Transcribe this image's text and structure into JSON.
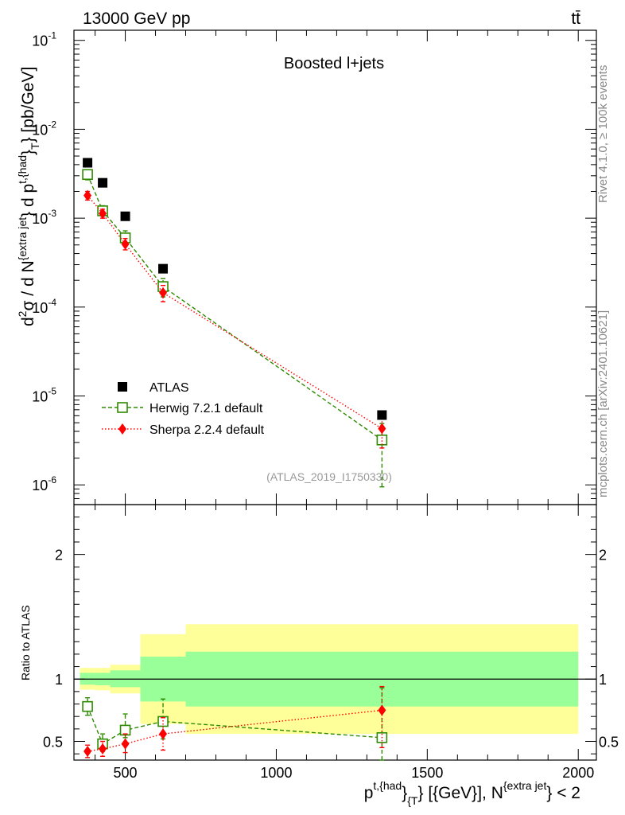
{
  "header": {
    "left": "13000 GeV pp",
    "right": "tt̄",
    "side_top": "Rivet 4.1.0, ≥ 100k events",
    "side_bottom": "mcplots.cern.ch [arXiv:2401.10621]"
  },
  "colors": {
    "atlas": "#000000",
    "herwig": "#2e8b00",
    "sherpa": "#ff0000",
    "band_inner": "#99ff99",
    "band_outer": "#ffff99",
    "watermark": "#999999"
  },
  "chart_data": [
    {
      "type": "scatter",
      "panel": "main",
      "title": "Boosted l+jets",
      "ylabel_parts": {
        "a": "d",
        "b": "2",
        "c": "σ  /  d N",
        "d": "{extra jet",
        "e": "} d p",
        "f": "t,{had",
        "g": "}",
        "h": "T",
        "i": "} [pb/GeV]"
      },
      "yscale": "log",
      "ylim": [
        6e-07,
        0.13
      ],
      "xlim": [
        330,
        2060
      ],
      "yticks": [
        {
          "base": "10",
          "exp": "-1",
          "value": 0.1
        },
        {
          "base": "10",
          "exp": "-2",
          "value": 0.01
        },
        {
          "base": "10",
          "exp": "-3",
          "value": 0.001
        },
        {
          "base": "10",
          "exp": "-4",
          "value": 0.0001
        },
        {
          "base": "10",
          "exp": "-5",
          "value": 1e-05
        },
        {
          "base": "10",
          "exp": "-6",
          "value": 1e-06
        }
      ],
      "annotation": "(ATLAS_2019_I1750330)",
      "legend_position": "lower-left",
      "series": [
        {
          "name": "ATLAS",
          "style": "square-filled",
          "x": [
            375,
            425,
            500,
            625,
            1350
          ],
          "y": [
            0.0042,
            0.0025,
            0.00105,
            0.00027,
            6.1e-06
          ]
        },
        {
          "name": "Herwig 7.2.1 default",
          "style": "square-open-dashed",
          "x": [
            375,
            425,
            500,
            625,
            1350
          ],
          "y": [
            0.0031,
            0.00121,
            0.0006,
            0.00017,
            3.2e-06
          ],
          "err_lo": [
            0.0027,
            0.00106,
            0.0005,
            0.00013,
            9.5e-07
          ],
          "err_hi": [
            0.0035,
            0.00138,
            0.00072,
            0.00021,
            4.9e-06
          ]
        },
        {
          "name": "Sherpa 2.2.4 default",
          "style": "diamond-filled-dotted",
          "x": [
            375,
            425,
            500,
            625,
            1350
          ],
          "y": [
            0.0018,
            0.00113,
            0.00051,
            0.000145,
            4.3e-06
          ],
          "err_lo": [
            0.0016,
            0.001,
            0.00044,
            0.000115,
            2.6e-06
          ],
          "err_hi": [
            0.002,
            0.00126,
            0.00059,
            0.000175,
            5.7e-06
          ]
        }
      ]
    },
    {
      "type": "scatter",
      "panel": "ratio",
      "ylabel": "Ratio to ATLAS",
      "ylim": [
        0.35,
        2.4
      ],
      "xlim": [
        330,
        2060
      ],
      "yticks": [
        "0.5",
        "1",
        "2"
      ],
      "ytick_values": [
        0.5,
        1,
        2
      ],
      "xticks": [
        "500",
        "1000",
        "1500",
        "2000"
      ],
      "xtick_values": [
        500,
        1000,
        1500,
        2000
      ],
      "xlabel_parts": {
        "a": "p",
        "b": "t,{had",
        "c": "}",
        "d": "{T",
        "e": "} [{GeV}], N",
        "f": "{extra jet",
        "g": "} < 2"
      },
      "reference_line": 1,
      "bands": [
        {
          "x0": 350,
          "x1": 400,
          "inner": [
            0.955,
            1.05
          ],
          "outer": [
            0.915,
            1.09
          ]
        },
        {
          "x0": 400,
          "x1": 450,
          "inner": [
            0.95,
            1.05
          ],
          "outer": [
            0.91,
            1.09
          ]
        },
        {
          "x0": 450,
          "x1": 550,
          "inner": [
            0.935,
            1.07
          ],
          "outer": [
            0.885,
            1.115
          ]
        },
        {
          "x0": 550,
          "x1": 700,
          "inner": [
            0.82,
            1.18
          ],
          "outer": [
            0.64,
            1.36
          ]
        },
        {
          "x0": 700,
          "x1": 2000,
          "inner": [
            0.78,
            1.22
          ],
          "outer": [
            0.56,
            1.44
          ]
        }
      ],
      "series": [
        {
          "name": "Herwig 7.2.1 default",
          "x": [
            375,
            425,
            500,
            625,
            1350
          ],
          "y": [
            0.78,
            0.48,
            0.59,
            0.66,
            0.53
          ],
          "err_lo": [
            0.71,
            0.42,
            0.53,
            0.52,
            0.35
          ],
          "err_hi": [
            0.85,
            0.56,
            0.72,
            0.84,
            0.93
          ]
        },
        {
          "name": "Sherpa 2.2.4 default",
          "x": [
            375,
            425,
            500,
            625,
            1350
          ],
          "y": [
            0.42,
            0.44,
            0.48,
            0.56,
            0.75
          ],
          "err_lo": [
            0.37,
            0.38,
            0.41,
            0.43,
            0.45
          ],
          "err_hi": [
            0.47,
            0.5,
            0.56,
            0.69,
            0.94
          ]
        }
      ]
    }
  ]
}
